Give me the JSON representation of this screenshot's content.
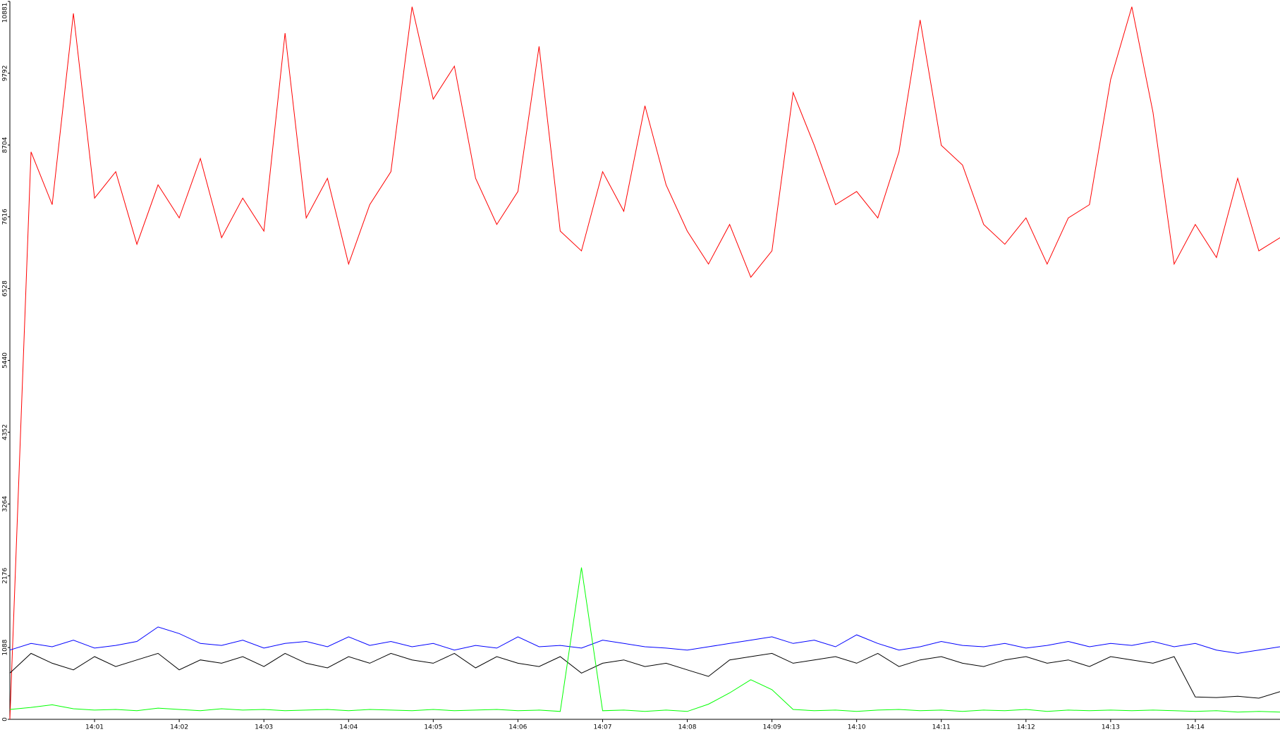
{
  "chart_data": {
    "type": "line",
    "x": [
      0,
      0.25,
      0.5,
      0.75,
      1,
      1.25,
      1.5,
      1.75,
      2,
      2.25,
      2.5,
      2.75,
      3,
      3.25,
      3.5,
      3.75,
      4,
      4.25,
      4.5,
      4.75,
      5,
      5.25,
      5.5,
      5.75,
      6,
      6.25,
      6.5,
      6.75,
      7,
      7.25,
      7.5,
      7.75,
      8,
      8.25,
      8.5,
      8.75,
      9,
      9.25,
      9.5,
      9.75,
      10,
      10.25,
      10.5,
      10.75,
      11,
      11.25,
      11.5,
      11.75,
      12,
      12.25,
      12.5,
      12.75,
      13,
      13.25,
      13.5,
      13.75,
      14,
      14.25,
      14.5,
      14.75,
      15
    ],
    "series": [
      {
        "color": "#ff0000",
        "values": [
          0,
          8600,
          7800,
          10700,
          7900,
          8300,
          7200,
          8100,
          7600,
          8500,
          7300,
          7900,
          7400,
          10400,
          7600,
          8200,
          6900,
          7800,
          8300,
          10800,
          9400,
          9900,
          8200,
          7500,
          8000,
          10200,
          7400,
          7100,
          8300,
          7700,
          9300,
          8100,
          7400,
          6900,
          7500,
          6700,
          7100,
          9500,
          8700,
          7800,
          8000,
          7600,
          8600,
          10600,
          8700,
          8400,
          7500,
          7200,
          7600,
          6900,
          7600,
          7800,
          9700,
          10800,
          9200,
          6900,
          7500,
          7000,
          8200,
          7100,
          7300
        ]
      },
      {
        "color": "#0000ff",
        "values": [
          1050,
          1150,
          1100,
          1200,
          1080,
          1120,
          1180,
          1400,
          1300,
          1150,
          1120,
          1200,
          1080,
          1150,
          1180,
          1100,
          1250,
          1120,
          1180,
          1100,
          1150,
          1050,
          1120,
          1080,
          1250,
          1100,
          1120,
          1080,
          1200,
          1150,
          1100,
          1080,
          1050,
          1100,
          1150,
          1200,
          1250,
          1150,
          1200,
          1100,
          1280,
          1150,
          1050,
          1100,
          1180,
          1120,
          1100,
          1150,
          1080,
          1120,
          1180,
          1100,
          1150,
          1120,
          1180,
          1100,
          1150,
          1050,
          1000,
          1050,
          1100
        ]
      },
      {
        "color": "#000000",
        "values": [
          700,
          1000,
          850,
          750,
          950,
          800,
          900,
          1000,
          750,
          900,
          850,
          950,
          800,
          1000,
          850,
          780,
          950,
          850,
          1000,
          900,
          850,
          1000,
          780,
          950,
          850,
          800,
          950,
          700,
          850,
          900,
          800,
          850,
          750,
          650,
          900,
          950,
          1000,
          850,
          900,
          950,
          850,
          1000,
          800,
          900,
          950,
          850,
          800,
          900,
          950,
          850,
          900,
          800,
          950,
          900,
          850,
          950,
          340,
          330,
          350,
          320,
          420
        ]
      },
      {
        "color": "#00ff00",
        "values": [
          150,
          180,
          220,
          160,
          140,
          150,
          130,
          170,
          150,
          130,
          160,
          140,
          150,
          130,
          140,
          150,
          130,
          150,
          140,
          130,
          150,
          130,
          140,
          150,
          130,
          140,
          120,
          2300,
          130,
          140,
          120,
          140,
          120,
          230,
          400,
          600,
          450,
          150,
          130,
          140,
          120,
          140,
          150,
          130,
          140,
          120,
          140,
          130,
          150,
          120,
          140,
          130,
          140,
          130,
          140,
          130,
          120,
          130,
          110,
          120,
          110
        ]
      }
    ],
    "xlim": [
      0,
      15
    ],
    "xticks": [
      {
        "value": 1,
        "label": "14:01"
      },
      {
        "value": 2,
        "label": "14:02"
      },
      {
        "value": 3,
        "label": "14:03"
      },
      {
        "value": 4,
        "label": "14:04"
      },
      {
        "value": 5,
        "label": "14:05"
      },
      {
        "value": 6,
        "label": "14:06"
      },
      {
        "value": 7,
        "label": "14:07"
      },
      {
        "value": 8,
        "label": "14:08"
      },
      {
        "value": 9,
        "label": "14:09"
      },
      {
        "value": 10,
        "label": "14:10"
      },
      {
        "value": 11,
        "label": "14:11"
      },
      {
        "value": 12,
        "label": "14:12"
      },
      {
        "value": 13,
        "label": "14:13"
      },
      {
        "value": 14,
        "label": "14:14"
      }
    ],
    "ylim": [
      0,
      10881
    ],
    "yticks": [
      0,
      1088,
      2176,
      3264,
      4352,
      5440,
      6528,
      7616,
      8704,
      9792,
      10881
    ]
  }
}
